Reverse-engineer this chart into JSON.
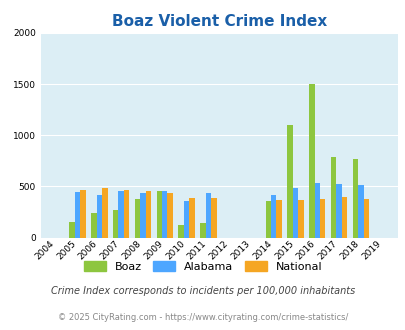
{
  "title": "Boaz Violent Crime Index",
  "years": [
    2004,
    2005,
    2006,
    2007,
    2008,
    2009,
    2010,
    2011,
    2012,
    2013,
    2014,
    2015,
    2016,
    2017,
    2018,
    2019
  ],
  "boaz": [
    0,
    150,
    240,
    265,
    375,
    460,
    120,
    140,
    0,
    0,
    360,
    1100,
    1500,
    790,
    770,
    0
  ],
  "alabama": [
    0,
    450,
    420,
    460,
    440,
    460,
    360,
    435,
    0,
    0,
    415,
    480,
    530,
    520,
    510,
    0
  ],
  "national": [
    0,
    470,
    480,
    465,
    460,
    440,
    390,
    385,
    0,
    0,
    365,
    370,
    380,
    395,
    375,
    0
  ],
  "boaz_color": "#8dc63f",
  "alabama_color": "#4da6ff",
  "national_color": "#f5a623",
  "bg_color": "#dceef5",
  "ylim": [
    0,
    2000
  ],
  "yticks": [
    0,
    500,
    1000,
    1500,
    2000
  ],
  "footer1": "Crime Index corresponds to incidents per 100,000 inhabitants",
  "footer2": "© 2025 CityRating.com - https://www.cityrating.com/crime-statistics/",
  "title_color": "#1a5fa8",
  "footer1_color": "#444444",
  "footer2_color": "#888888",
  "bar_width": 0.25,
  "title_fontsize": 11,
  "tick_fontsize": 6.5,
  "legend_fontsize": 8,
  "footer1_fontsize": 7,
  "footer2_fontsize": 6
}
